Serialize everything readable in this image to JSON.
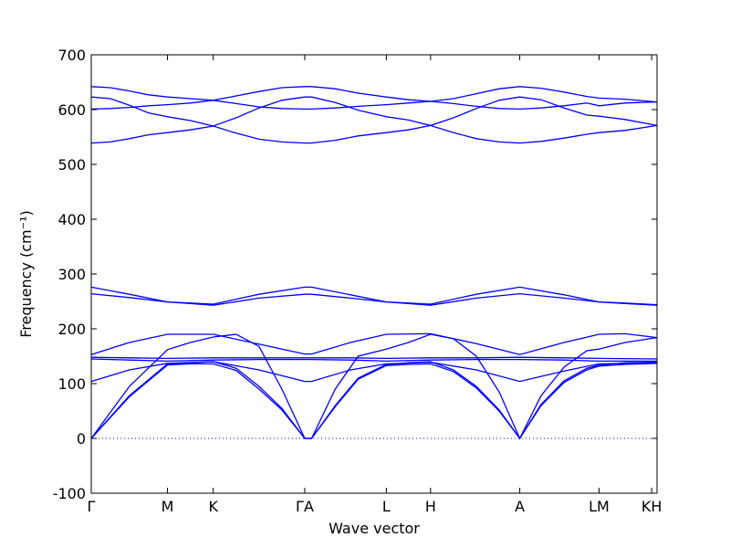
{
  "chart_data": {
    "type": "line",
    "xlabel": "Wave vector",
    "ylabel": "Frequency (cm⁻¹)",
    "ylim": [
      -100,
      700
    ],
    "yticks": [
      -100,
      0,
      100,
      200,
      300,
      400,
      500,
      600,
      700
    ],
    "xlim": [
      0,
      7.42
    ],
    "high_symmetry_points": [
      {
        "label": "Γ",
        "x": 0
      },
      {
        "label": "M",
        "x": 1.0
      },
      {
        "label": "K",
        "x": 1.6
      },
      {
        "label": "ΓA",
        "x": 2.8
      },
      {
        "label": "L",
        "x": 3.87
      },
      {
        "label": "H",
        "x": 4.45
      },
      {
        "label": "A",
        "x": 5.62
      },
      {
        "label": "LM",
        "x": 6.66
      },
      {
        "label": "KH",
        "x": 7.35
      }
    ],
    "zero_line": true,
    "series": [
      {
        "x": [
          0,
          0.25,
          0.5,
          0.75,
          1.0,
          1.3,
          1.6,
          1.9,
          2.2,
          2.5,
          2.8,
          2.89,
          3.2,
          3.5,
          3.87,
          4.16,
          4.45,
          4.75,
          5.05,
          5.35,
          5.62,
          5.9,
          6.2,
          6.5,
          6.66,
          7.0,
          7.42
        ],
        "y": [
          642,
          640,
          634,
          627,
          623,
          620,
          617,
          625,
          633,
          640,
          642,
          642,
          638,
          630,
          623,
          618,
          615,
          620,
          629,
          638,
          642,
          639,
          632,
          624,
          621,
          619,
          614
        ]
      },
      {
        "x": [
          0,
          0.25,
          0.5,
          0.75,
          1.0,
          1.3,
          1.6,
          1.9,
          2.2,
          2.5,
          2.8,
          2.89,
          3.2,
          3.5,
          3.87,
          4.16,
          4.45,
          4.75,
          5.05,
          5.35,
          5.62,
          5.9,
          6.2,
          6.5,
          6.66,
          7.0,
          7.42
        ],
        "y": [
          623,
          620,
          608,
          594,
          587,
          580,
          570,
          585,
          603,
          617,
          623,
          623,
          613,
          599,
          587,
          581,
          571,
          585,
          602,
          617,
          623,
          618,
          603,
          590,
          588,
          582,
          571
        ]
      },
      {
        "x": [
          0,
          0.25,
          0.5,
          0.75,
          1.0,
          1.3,
          1.6,
          1.9,
          2.2,
          2.5,
          2.8,
          2.89,
          3.2,
          3.5,
          3.87,
          4.16,
          4.45,
          4.75,
          5.05,
          5.35,
          5.62,
          5.9,
          6.2,
          6.5,
          6.66,
          7.0,
          7.42
        ],
        "y": [
          601,
          602,
          604,
          607,
          609,
          612,
          617,
          611,
          605,
          602,
          601,
          601,
          603,
          606,
          609,
          612,
          615,
          611,
          606,
          602,
          601,
          603,
          607,
          612,
          607,
          612,
          614
        ]
      },
      {
        "x": [
          0,
          0.25,
          0.5,
          0.75,
          1.0,
          1.3,
          1.6,
          1.9,
          2.2,
          2.5,
          2.8,
          2.89,
          3.2,
          3.5,
          3.87,
          4.16,
          4.45,
          4.75,
          5.05,
          5.35,
          5.62,
          5.9,
          6.2,
          6.5,
          6.66,
          7.0,
          7.42
        ],
        "y": [
          539,
          541,
          547,
          554,
          558,
          563,
          570,
          557,
          546,
          541,
          539,
          539,
          544,
          552,
          558,
          563,
          571,
          558,
          547,
          541,
          539,
          542,
          548,
          555,
          558,
          562,
          571
        ]
      },
      {
        "x": [
          0,
          0.5,
          1.0,
          1.3,
          1.6,
          2.2,
          2.8,
          2.89,
          3.4,
          3.87,
          4.16,
          4.45,
          5.05,
          5.62,
          6.2,
          6.66,
          7.0,
          7.42
        ],
        "y": [
          276,
          263,
          249,
          247,
          245,
          263,
          276,
          276,
          262,
          249,
          247,
          245,
          263,
          276,
          262,
          249,
          247,
          244
        ]
      },
      {
        "x": [
          0,
          0.5,
          1.0,
          1.3,
          1.6,
          2.2,
          2.8,
          2.89,
          3.4,
          3.87,
          4.16,
          4.45,
          5.05,
          5.62,
          6.2,
          6.66,
          7.0,
          7.42
        ],
        "y": [
          264,
          257,
          249,
          246,
          243,
          256,
          263,
          263,
          256,
          249,
          246,
          243,
          256,
          264,
          256,
          249,
          246,
          243
        ]
      },
      {
        "x": [
          0,
          0.5,
          1.0,
          1.6,
          2.2,
          2.8,
          2.89,
          3.4,
          3.87,
          4.45,
          5.05,
          5.62,
          6.2,
          6.66,
          7.0,
          7.42
        ],
        "y": [
          153,
          175,
          190,
          190,
          172,
          154,
          154,
          175,
          190,
          191,
          173,
          153,
          175,
          190,
          191,
          184
        ]
      },
      {
        "x": [
          0,
          0.5,
          1.0,
          1.3,
          1.6,
          1.9,
          2.2,
          2.5,
          2.8,
          2.89,
          3.2,
          3.5,
          3.87,
          4.16,
          4.45,
          4.75,
          5.05,
          5.35,
          5.62,
          5.9,
          6.2,
          6.5,
          6.66,
          7.0,
          7.42
        ],
        "y": [
          0,
          95,
          162,
          175,
          185,
          190,
          168,
          90,
          0,
          0,
          90,
          150,
          163,
          175,
          190,
          182,
          150,
          85,
          0,
          78,
          130,
          160,
          163,
          175,
          184
        ]
      },
      {
        "x": [
          0,
          0.5,
          1.0,
          1.6,
          2.2,
          2.8,
          2.89,
          3.4,
          3.87,
          4.45,
          5.05,
          5.62,
          6.2,
          6.66,
          7.42
        ],
        "y": [
          148,
          147,
          146,
          147,
          147,
          147,
          147,
          147,
          146,
          147,
          147,
          148,
          147,
          146,
          145
        ]
      },
      {
        "x": [
          0,
          0.5,
          1.0,
          1.6,
          2.2,
          2.8,
          2.89,
          3.4,
          3.87,
          4.45,
          5.05,
          5.62,
          6.2,
          6.66,
          7.42
        ],
        "y": [
          145,
          143,
          141,
          143,
          144,
          144,
          144,
          143,
          141,
          143,
          144,
          144,
          143,
          141,
          141
        ]
      },
      {
        "x": [
          0,
          0.5,
          1.0,
          1.6,
          2.2,
          2.8,
          2.89,
          3.4,
          3.87,
          4.45,
          5.05,
          5.62,
          6.2,
          6.66,
          7.42
        ],
        "y": [
          104,
          125,
          137,
          140,
          125,
          104,
          104,
          125,
          136,
          139,
          125,
          104,
          123,
          136,
          138
        ]
      },
      {
        "x": [
          0,
          0.5,
          1.0,
          1.3,
          1.6,
          1.9,
          2.2,
          2.5,
          2.8,
          2.89,
          3.2,
          3.5,
          3.87,
          4.16,
          4.45,
          4.75,
          5.05,
          5.35,
          5.62,
          5.9,
          6.2,
          6.5,
          6.66,
          7.0,
          7.42
        ],
        "y": [
          0,
          78,
          136,
          138,
          140,
          128,
          95,
          55,
          0,
          0,
          60,
          110,
          135,
          138,
          140,
          125,
          95,
          52,
          0,
          62,
          105,
          128,
          134,
          138,
          139
        ]
      },
      {
        "x": [
          0,
          0.5,
          1.0,
          1.3,
          1.6,
          1.9,
          2.2,
          2.5,
          2.8,
          2.89,
          3.2,
          3.5,
          3.87,
          4.16,
          4.45,
          4.75,
          5.05,
          5.35,
          5.62,
          5.9,
          6.2,
          6.5,
          6.66,
          7.0,
          7.42
        ],
        "y": [
          0,
          76,
          134,
          136,
          136,
          124,
          90,
          52,
          0,
          0,
          58,
          108,
          133,
          135,
          136,
          122,
          92,
          50,
          0,
          60,
          102,
          125,
          132,
          135,
          137
        ]
      }
    ]
  }
}
